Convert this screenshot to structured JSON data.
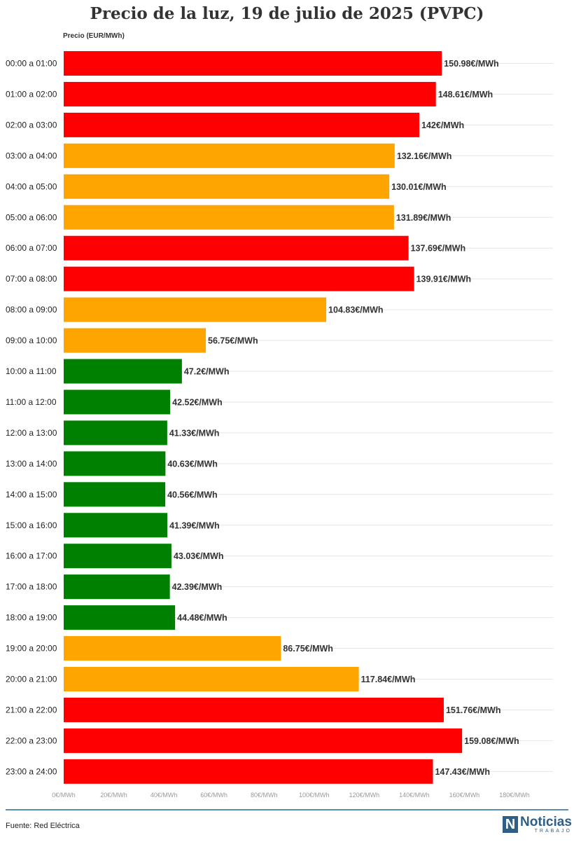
{
  "title": "Precio de la luz, 19 de julio de 2025 (PVPC)",
  "axis_caption": "Precio (EUR/MWh)",
  "footer": {
    "source": "Fuente: Red Eléctrica"
  },
  "logo": {
    "word": "Noticias",
    "sub": "TRABAJO",
    "mark": "N"
  },
  "colors": {
    "high": "#ff0000",
    "medium": "#ffa500",
    "low": "#008000",
    "grid": "#e6e6e6"
  },
  "chart_data": {
    "type": "bar",
    "orientation": "horizontal",
    "title": "Precio de la luz, 19 de julio de 2025 (PVPC)",
    "xlabel": "Precio (EUR/MWh)",
    "xlim": [
      0,
      180
    ],
    "xticks": [
      "0€/MWh",
      "20€/MWh",
      "40€/MWh",
      "60€/MWh",
      "80€/MWh",
      "100€/MWh",
      "120€/MWh",
      "140€/MWh",
      "160€/MWh",
      "180€/MWh"
    ],
    "grid": true,
    "categories": [
      "00:00 a 01:00",
      "01:00 a 02:00",
      "02:00 a 03:00",
      "03:00 a 04:00",
      "04:00 a 05:00",
      "05:00 a 06:00",
      "06:00 a 07:00",
      "07:00 a 08:00",
      "08:00 a 09:00",
      "09:00 a 10:00",
      "10:00 a 11:00",
      "11:00 a 12:00",
      "12:00 a 13:00",
      "13:00 a 14:00",
      "14:00 a 15:00",
      "15:00 a 16:00",
      "16:00 a 17:00",
      "17:00 a 18:00",
      "18:00 a 19:00",
      "19:00 a 20:00",
      "20:00 a 21:00",
      "21:00 a 22:00",
      "22:00 a 23:00",
      "23:00 a 24:00"
    ],
    "values": [
      150.98,
      148.61,
      142,
      132.16,
      130.01,
      131.89,
      137.69,
      139.91,
      104.83,
      56.75,
      47.2,
      42.52,
      41.33,
      40.63,
      40.56,
      41.39,
      43.03,
      42.39,
      44.48,
      86.75,
      117.84,
      151.76,
      159.08,
      147.43
    ],
    "labels": [
      "150.98€/MWh",
      "148.61€/MWh",
      "142€/MWh",
      "132.16€/MWh",
      "130.01€/MWh",
      "131.89€/MWh",
      "137.69€/MWh",
      "139.91€/MWh",
      "104.83€/MWh",
      "56.75€/MWh",
      "47.2€/MWh",
      "42.52€/MWh",
      "41.33€/MWh",
      "40.63€/MWh",
      "40.56€/MWh",
      "41.39€/MWh",
      "43.03€/MWh",
      "42.39€/MWh",
      "44.48€/MWh",
      "86.75€/MWh",
      "117.84€/MWh",
      "151.76€/MWh",
      "159.08€/MWh",
      "147.43€/MWh"
    ],
    "levels": [
      "high",
      "high",
      "high",
      "medium",
      "medium",
      "medium",
      "high",
      "high",
      "medium",
      "medium",
      "low",
      "low",
      "low",
      "low",
      "low",
      "low",
      "low",
      "low",
      "low",
      "medium",
      "medium",
      "high",
      "high",
      "high"
    ]
  }
}
